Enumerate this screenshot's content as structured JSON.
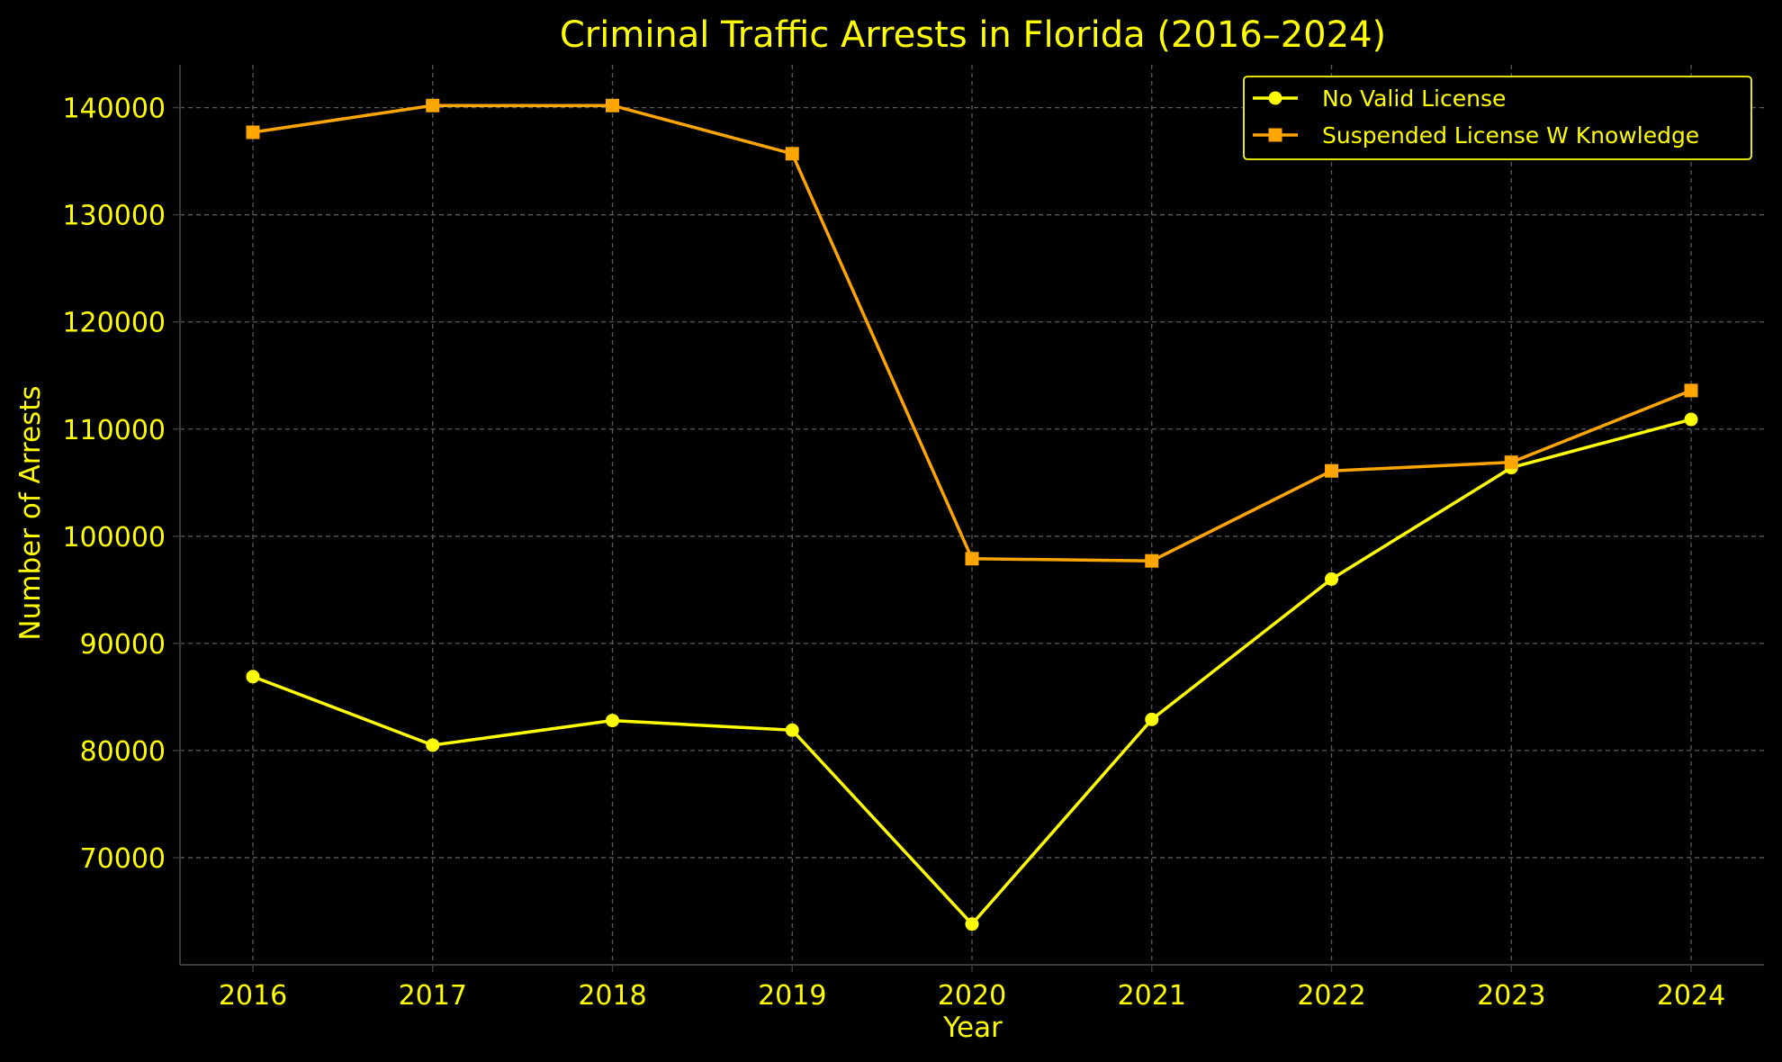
{
  "colors": {
    "background": "#000000",
    "text": "#ffff00",
    "grid": "#5a5a5a",
    "axis": "#3a3a3a"
  },
  "chart_data": {
    "type": "line",
    "title": "Criminal Traffic Arrests in Florida (2016–2024)",
    "xlabel": "Year",
    "ylabel": "Number of Arrests",
    "x": [
      "2016",
      "2017",
      "2018",
      "2019",
      "2020",
      "2021",
      "2022",
      "2023",
      "2024"
    ],
    "y_ticks": [
      "70000",
      "80000",
      "90000",
      "100000",
      "110000",
      "120000",
      "130000",
      "140000"
    ],
    "ylim": [
      60000,
      144000
    ],
    "grid": true,
    "legend_position": "top-right",
    "series": [
      {
        "name": "No Valid License",
        "color": "#ffff00",
        "marker": "circle",
        "values": [
          86900,
          80500,
          82800,
          81900,
          63800,
          82900,
          96000,
          106400,
          110900
        ]
      },
      {
        "name": "Suspended License W Knowledge",
        "color": "#ffa500",
        "marker": "square",
        "values": [
          137700,
          140200,
          140200,
          135700,
          97900,
          97700,
          106100,
          106900,
          113600
        ]
      }
    ]
  }
}
